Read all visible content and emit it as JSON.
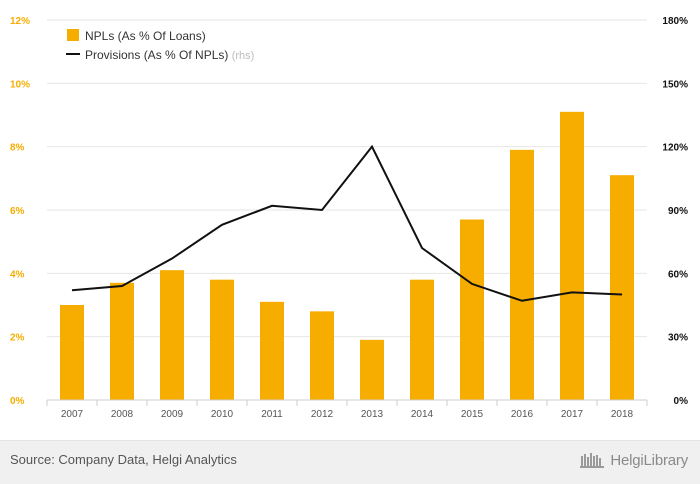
{
  "colors": {
    "bar": "#f7ad00",
    "line": "#111111",
    "left_axis": "#f7ad00",
    "right_axis": "#111111",
    "x_tick": "#555555",
    "grid": "#e6e6e6",
    "rhs_note": "#bbbbbb"
  },
  "chart_data": {
    "type": "bar",
    "categories": [
      "2007",
      "2008",
      "2009",
      "2010",
      "2011",
      "2012",
      "2013",
      "2014",
      "2015",
      "2016",
      "2017",
      "2018"
    ],
    "series": [
      {
        "name": "NPLs (As % Of Loans)",
        "type": "bar",
        "axis": "left",
        "values": [
          3.0,
          3.7,
          4.1,
          3.8,
          3.1,
          2.8,
          1.9,
          3.8,
          5.7,
          7.9,
          9.1,
          7.1
        ]
      },
      {
        "name": "Provisions (As % Of NPLs)",
        "type": "line",
        "axis": "right",
        "values": [
          52,
          54,
          67,
          83,
          92,
          90,
          120,
          72,
          55,
          47,
          51,
          50
        ]
      }
    ],
    "left_axis": {
      "range": [
        0,
        12
      ],
      "ticks": [
        "0%",
        "2%",
        "4%",
        "6%",
        "8%",
        "10%",
        "12%"
      ]
    },
    "right_axis": {
      "range": [
        0,
        180
      ],
      "ticks": [
        "0%",
        "30%",
        "60%",
        "90%",
        "120%",
        "150%",
        "180%"
      ]
    },
    "legend": {
      "placement": "top-left",
      "rhs_note": "(rhs)"
    },
    "grid": "horizontal"
  },
  "footer": {
    "source": "Source: Company Data, Helgi Analytics",
    "brand": "HelgiLibrary"
  }
}
